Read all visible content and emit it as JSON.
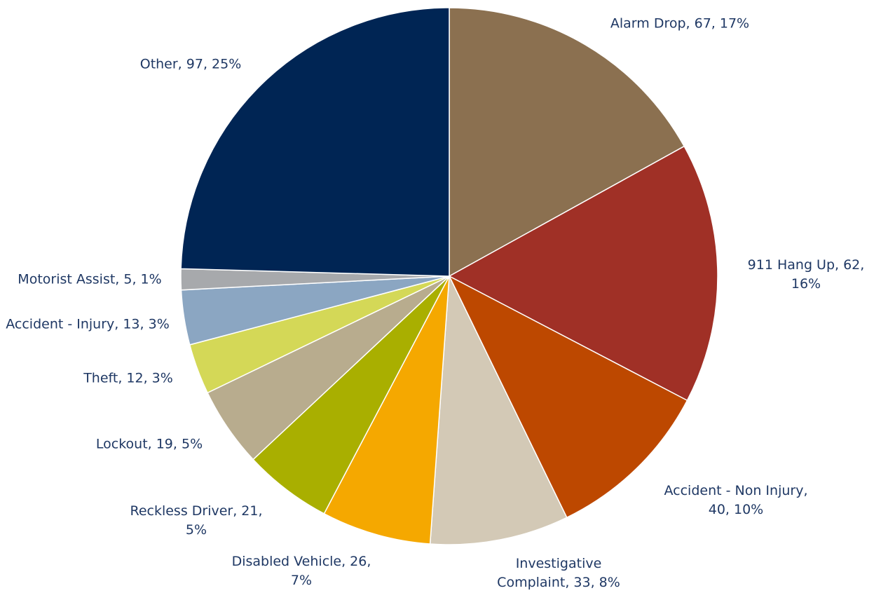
{
  "chart_data": {
    "type": "pie",
    "values": [
      67,
      62,
      40,
      33,
      26,
      21,
      19,
      12,
      13,
      5,
      97
    ],
    "value_labels": [
      "Alarm Drop, 67, 17%",
      "911 Hang Up, 62, 16%",
      "Accident - Non Injury, 40, 10%",
      "Investigative Complaint, 33, 8%",
      "Disabled Vehicle, 26, 7%",
      "Reckless Driver, 21, 5%",
      "Lockout, 19, 5%",
      "Theft, 12, 3%",
      "Accident - Injury, 13, 3%",
      "Motorist Assist, 5, 1%",
      "Other, 97, 25%"
    ],
    "colors": [
      "#8b7050",
      "#a03026",
      "#bd4800",
      "#d3c9b6",
      "#f5a800",
      "#a9af00",
      "#b8ac8e",
      "#d4d857",
      "#8ba6c2",
      "#a7a9ac",
      "#002554"
    ]
  }
}
